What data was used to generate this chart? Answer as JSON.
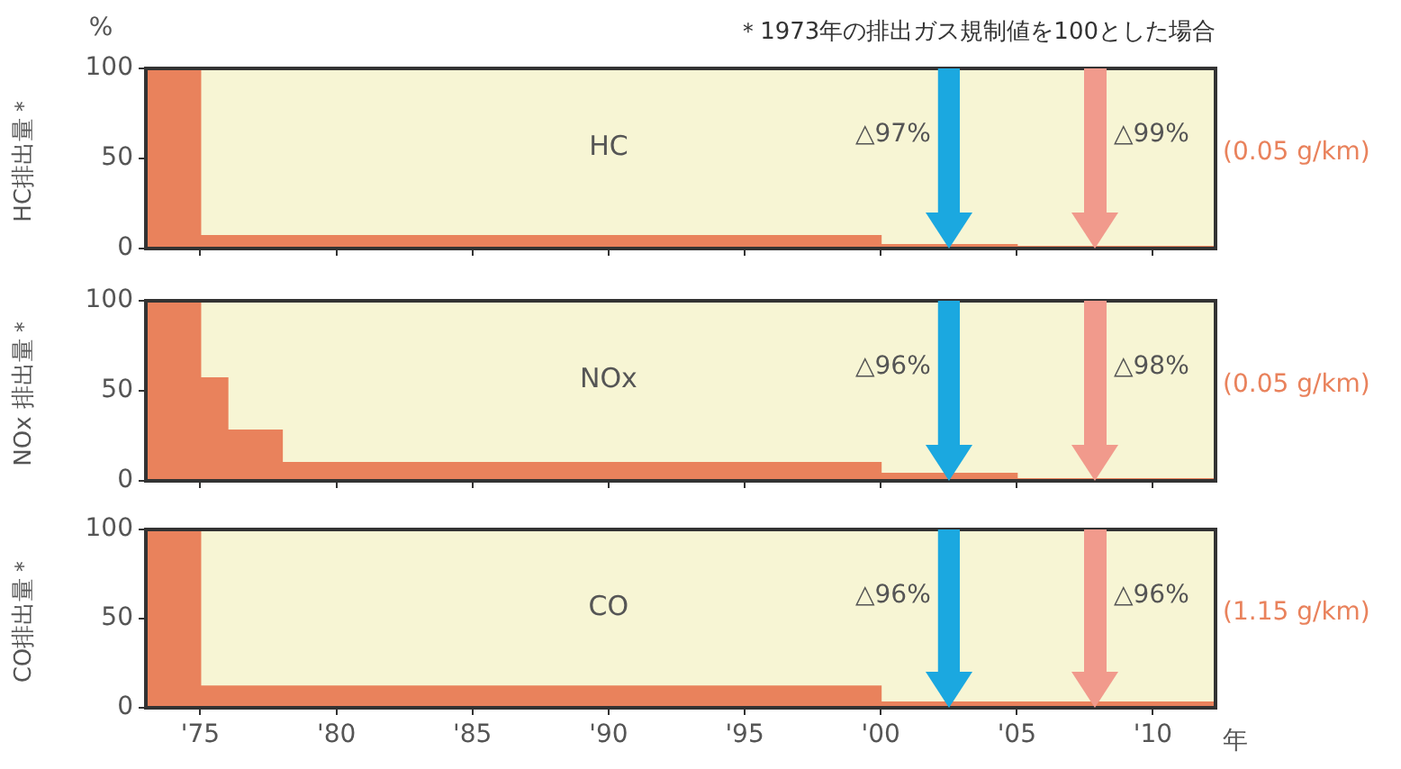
{
  "chart_data": [
    {
      "type": "area",
      "title": "HC",
      "subtitle": "＊1973年の排出ガス規制値を100とした場合",
      "ylabel": "HC排出量＊",
      "annotations": [
        "(0.05 g/km)",
        "%"
      ],
      "series": [
        {
          "color": "#e9825c",
          "x": [
            1973,
            1975,
            1975,
            2000,
            2000,
            2005,
            2005,
            2012.3
          ],
          "values": [
            100,
            100,
            7,
            7,
            2,
            2,
            1,
            1
          ]
        }
      ],
      "xlim": [
        1973,
        2012.3
      ],
      "ylim": [
        0,
        100
      ],
      "yticks": [
        0,
        50,
        100
      ],
      "xticks": [
        {
          "value": 1975,
          "label": null
        },
        {
          "value": 1980,
          "label": null
        },
        {
          "value": 1985,
          "label": null
        },
        {
          "value": 1990,
          "label": null
        },
        {
          "value": 1995,
          "label": null
        },
        {
          "value": 2000,
          "label": null
        },
        {
          "value": 2005,
          "label": null
        },
        {
          "value": 2010,
          "label": null
        }
      ],
      "tick_labels": "y",
      "ref_lines": [
        {
          "axis": "x",
          "value": 2002.5,
          "label": "△97%",
          "color": "#1ba8e0"
        },
        {
          "axis": "x",
          "value": 2007.9,
          "label": "△99%",
          "color": "#f19a8c"
        }
      ]
    },
    {
      "type": "area",
      "title": "NOx",
      "ylabel": "NOx 排出量＊",
      "annotations": [
        "(0.05 g/km)"
      ],
      "series": [
        {
          "color": "#e9825c",
          "x": [
            1973,
            1975,
            1975,
            1976,
            1976,
            1978,
            1978,
            2000,
            2000,
            2005,
            2005,
            2012.3
          ],
          "values": [
            100,
            100,
            57,
            57,
            28,
            28,
            10,
            10,
            4,
            4,
            1,
            1
          ]
        }
      ],
      "xlim": [
        1973,
        2012.3
      ],
      "ylim": [
        0,
        100
      ],
      "yticks": [
        0,
        50,
        100
      ],
      "xticks": [
        {
          "value": 1975,
          "label": null
        },
        {
          "value": 1980,
          "label": null
        },
        {
          "value": 1985,
          "label": null
        },
        {
          "value": 1990,
          "label": null
        },
        {
          "value": 1995,
          "label": null
        },
        {
          "value": 2000,
          "label": null
        },
        {
          "value": 2005,
          "label": null
        },
        {
          "value": 2010,
          "label": null
        }
      ],
      "tick_labels": "y",
      "ref_lines": [
        {
          "axis": "x",
          "value": 2002.5,
          "label": "△96%",
          "color": "#1ba8e0"
        },
        {
          "axis": "x",
          "value": 2007.9,
          "label": "△98%",
          "color": "#f19a8c"
        }
      ]
    },
    {
      "type": "area",
      "title": "CO",
      "ylabel": "CO排出量＊",
      "xlabel": "年",
      "annotations": [
        "(1.15 g/km)"
      ],
      "series": [
        {
          "color": "#e9825c",
          "x": [
            1973,
            1975,
            1975,
            2000,
            2000,
            2012.3
          ],
          "values": [
            100,
            100,
            12,
            12,
            3,
            3
          ]
        }
      ],
      "xlim": [
        1973,
        2012.3
      ],
      "ylim": [
        0,
        100
      ],
      "yticks": [
        0,
        50,
        100
      ],
      "xticks": [
        {
          "value": 1975,
          "label": "'75"
        },
        {
          "value": 1980,
          "label": "'80"
        },
        {
          "value": 1985,
          "label": "'85"
        },
        {
          "value": 1990,
          "label": "'90"
        },
        {
          "value": 1995,
          "label": "'95"
        },
        {
          "value": 2000,
          "label": "'00"
        },
        {
          "value": 2005,
          "label": "'05"
        },
        {
          "value": 2010,
          "label": "'10"
        }
      ],
      "ref_lines": [
        {
          "axis": "x",
          "value": 2002.5,
          "label": "△96%",
          "color": "#1ba8e0"
        },
        {
          "axis": "x",
          "value": 2007.9,
          "label": "△96%",
          "color": "#f19a8c"
        }
      ]
    }
  ]
}
